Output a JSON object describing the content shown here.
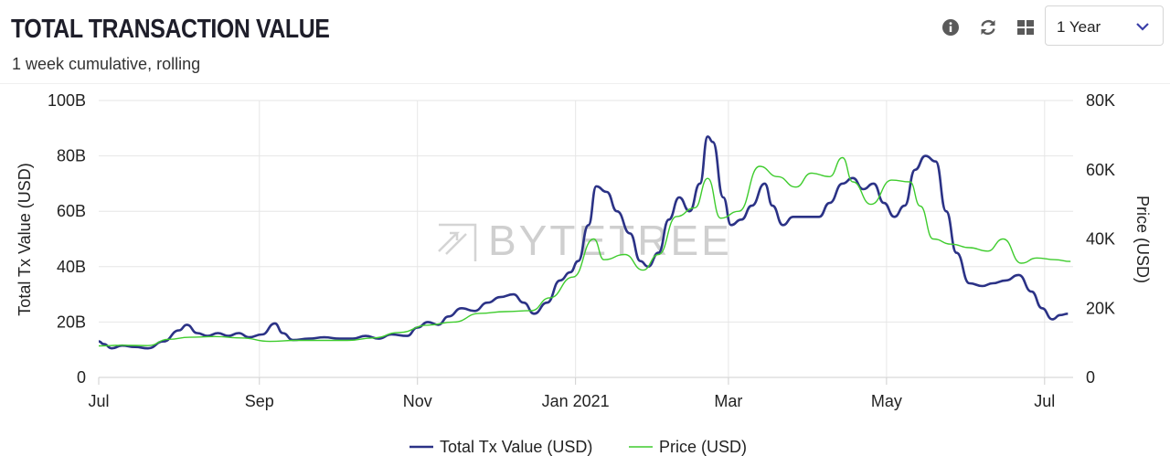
{
  "header": {
    "title": "TOTAL TRANSACTION VALUE",
    "subtitle": "1 week cumulative, rolling",
    "range_value": "1 Year",
    "icons": [
      "info-icon",
      "refresh-icon",
      "grid-icon",
      "chevron-down-icon"
    ]
  },
  "watermark": "BYTETREE",
  "colors": {
    "tx_series": "#2b3286",
    "price_series": "#3fcc2e",
    "grid": "#e6e6e6",
    "accent": "#3a3fa8"
  },
  "chart_data": {
    "type": "line",
    "x_axis": {
      "type": "date",
      "range": [
        "2020-07-01",
        "2021-07-12"
      ],
      "ticks": [
        "Jul",
        "Sep",
        "Nov",
        "Jan 2021",
        "Mar",
        "May",
        "Jul"
      ]
    },
    "y_left": {
      "label": "Total Tx Value (USD)",
      "range": [
        0,
        100
      ],
      "unit": "B",
      "ticks": [
        "0",
        "20B",
        "40B",
        "60B",
        "80B",
        "100B"
      ]
    },
    "y_right": {
      "label": "Price (USD)",
      "range": [
        0,
        80
      ],
      "unit": "K",
      "ticks": [
        "0",
        "20K",
        "40K",
        "60K",
        "80K"
      ]
    },
    "grid": true,
    "legend": {
      "placement": "bottom-center"
    },
    "series": [
      {
        "name": "Total Tx Value (USD)",
        "axis": "left",
        "points": [
          [
            "2020-07-01",
            13
          ],
          [
            "2020-07-03",
            12
          ],
          [
            "2020-07-06",
            10.5
          ],
          [
            "2020-07-10",
            11.5
          ],
          [
            "2020-07-15",
            11
          ],
          [
            "2020-07-20",
            10.5
          ],
          [
            "2020-07-26",
            13
          ],
          [
            "2020-08-01",
            17
          ],
          [
            "2020-08-04",
            19
          ],
          [
            "2020-08-08",
            16
          ],
          [
            "2020-08-12",
            15
          ],
          [
            "2020-08-16",
            16
          ],
          [
            "2020-08-20",
            15
          ],
          [
            "2020-08-24",
            16
          ],
          [
            "2020-08-28",
            14.5
          ],
          [
            "2020-09-02",
            15.5
          ],
          [
            "2020-09-07",
            19.5
          ],
          [
            "2020-09-10",
            16
          ],
          [
            "2020-09-14",
            13.5
          ],
          [
            "2020-09-20",
            14
          ],
          [
            "2020-09-26",
            14.5
          ],
          [
            "2020-10-02",
            14
          ],
          [
            "2020-10-07",
            14
          ],
          [
            "2020-10-12",
            15
          ],
          [
            "2020-10-17",
            14
          ],
          [
            "2020-10-22",
            15.5
          ],
          [
            "2020-10-28",
            15
          ],
          [
            "2020-11-01",
            18
          ],
          [
            "2020-11-05",
            20
          ],
          [
            "2020-11-09",
            19
          ],
          [
            "2020-11-13",
            22
          ],
          [
            "2020-11-18",
            25
          ],
          [
            "2020-11-23",
            24
          ],
          [
            "2020-11-28",
            27
          ],
          [
            "2020-12-03",
            29
          ],
          [
            "2020-12-08",
            30
          ],
          [
            "2020-12-12",
            27
          ],
          [
            "2020-12-16",
            23
          ],
          [
            "2020-12-21",
            27
          ],
          [
            "2020-12-26",
            35
          ],
          [
            "2020-12-30",
            38
          ],
          [
            "2021-01-02",
            42
          ],
          [
            "2021-01-06",
            55
          ],
          [
            "2021-01-09",
            69
          ],
          [
            "2021-01-13",
            67
          ],
          [
            "2021-01-17",
            60
          ],
          [
            "2021-01-22",
            52
          ],
          [
            "2021-01-26",
            42
          ],
          [
            "2021-01-29",
            40
          ],
          [
            "2021-02-02",
            45
          ],
          [
            "2021-02-06",
            57
          ],
          [
            "2021-02-10",
            65
          ],
          [
            "2021-02-14",
            60
          ],
          [
            "2021-02-18",
            70
          ],
          [
            "2021-02-21",
            87
          ],
          [
            "2021-02-23",
            85
          ],
          [
            "2021-02-27",
            65
          ],
          [
            "2021-03-02",
            55
          ],
          [
            "2021-03-06",
            57
          ],
          [
            "2021-03-10",
            62
          ],
          [
            "2021-03-15",
            70
          ],
          [
            "2021-03-18",
            62
          ],
          [
            "2021-03-22",
            55
          ],
          [
            "2021-03-26",
            58
          ],
          [
            "2021-03-31",
            58
          ],
          [
            "2021-04-05",
            58
          ],
          [
            "2021-04-09",
            63
          ],
          [
            "2021-04-14",
            70
          ],
          [
            "2021-04-18",
            72
          ],
          [
            "2021-04-22",
            68
          ],
          [
            "2021-04-26",
            70
          ],
          [
            "2021-04-30",
            63
          ],
          [
            "2021-05-04",
            58
          ],
          [
            "2021-05-08",
            62
          ],
          [
            "2021-05-12",
            75
          ],
          [
            "2021-05-16",
            80
          ],
          [
            "2021-05-20",
            78
          ],
          [
            "2021-05-24",
            60
          ],
          [
            "2021-05-28",
            45
          ],
          [
            "2021-06-02",
            34
          ],
          [
            "2021-06-07",
            33
          ],
          [
            "2021-06-11",
            34
          ],
          [
            "2021-06-16",
            35
          ],
          [
            "2021-06-21",
            37
          ],
          [
            "2021-06-26",
            31
          ],
          [
            "2021-06-30",
            25
          ],
          [
            "2021-07-04",
            21
          ],
          [
            "2021-07-07",
            22.5
          ],
          [
            "2021-07-10",
            23
          ]
        ]
      },
      {
        "name": "Price (USD)",
        "axis": "right",
        "points": [
          [
            "2020-07-01",
            9.1
          ],
          [
            "2020-07-10",
            9.3
          ],
          [
            "2020-07-20",
            9.2
          ],
          [
            "2020-07-28",
            11
          ],
          [
            "2020-08-05",
            11.6
          ],
          [
            "2020-08-15",
            11.8
          ],
          [
            "2020-08-25",
            11.4
          ],
          [
            "2020-09-05",
            10.4
          ],
          [
            "2020-09-15",
            10.7
          ],
          [
            "2020-09-25",
            10.7
          ],
          [
            "2020-10-05",
            10.7
          ],
          [
            "2020-10-15",
            11.4
          ],
          [
            "2020-10-25",
            13.0
          ],
          [
            "2020-11-05",
            15.1
          ],
          [
            "2020-11-15",
            16.0
          ],
          [
            "2020-11-25",
            18.5
          ],
          [
            "2020-12-05",
            19.0
          ],
          [
            "2020-12-15",
            19.3
          ],
          [
            "2020-12-22",
            23.0
          ],
          [
            "2020-12-31",
            29.0
          ],
          [
            "2021-01-08",
            40.0
          ],
          [
            "2021-01-12",
            34.0
          ],
          [
            "2021-01-20",
            35.5
          ],
          [
            "2021-01-27",
            31.0
          ],
          [
            "2021-02-02",
            35.5
          ],
          [
            "2021-02-09",
            46.5
          ],
          [
            "2021-02-16",
            49.0
          ],
          [
            "2021-02-21",
            57.5
          ],
          [
            "2021-02-26",
            46.0
          ],
          [
            "2021-03-05",
            48.0
          ],
          [
            "2021-03-13",
            61.0
          ],
          [
            "2021-03-20",
            58.0
          ],
          [
            "2021-03-27",
            55.0
          ],
          [
            "2021-04-02",
            59.0
          ],
          [
            "2021-04-09",
            58.0
          ],
          [
            "2021-04-14",
            63.5
          ],
          [
            "2021-04-18",
            56.5
          ],
          [
            "2021-04-25",
            50.0
          ],
          [
            "2021-05-03",
            57.0
          ],
          [
            "2021-05-10",
            56.5
          ],
          [
            "2021-05-14",
            49.5
          ],
          [
            "2021-05-19",
            40.0
          ],
          [
            "2021-05-26",
            38.5
          ],
          [
            "2021-06-02",
            37.5
          ],
          [
            "2021-06-09",
            36.5
          ],
          [
            "2021-06-15",
            40.0
          ],
          [
            "2021-06-22",
            33.0
          ],
          [
            "2021-06-28",
            34.5
          ],
          [
            "2021-07-05",
            34.0
          ],
          [
            "2021-07-11",
            33.5
          ]
        ]
      }
    ]
  }
}
